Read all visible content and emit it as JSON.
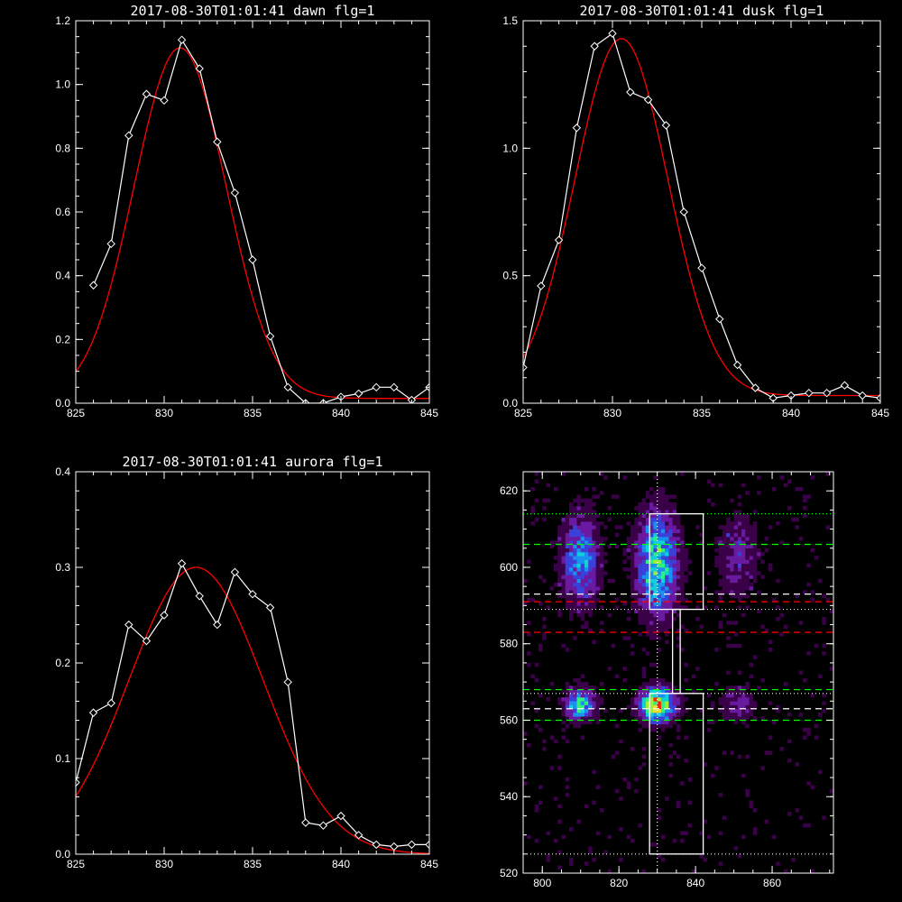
{
  "chart_data": [
    {
      "type": "line",
      "title": "2017-08-30T01:01:41 dawn flg=1",
      "xlim": [
        825,
        845
      ],
      "ylim": [
        0,
        1.2
      ],
      "xticks": [
        825,
        830,
        835,
        840,
        845
      ],
      "yticks": [
        0.0,
        0.2,
        0.4,
        0.6,
        0.8,
        1.0,
        1.2
      ],
      "ytick_labels": [
        "0.0",
        "0.2",
        "0.4",
        "0.6",
        "0.8",
        "1.0",
        "1.2"
      ],
      "series": [
        {
          "kind": "data",
          "color": "#ffffff",
          "x": [
            826,
            827,
            828,
            829,
            830,
            831,
            832,
            833,
            834,
            835,
            836,
            837,
            838,
            839,
            840,
            841,
            842,
            843,
            844,
            845
          ],
          "y": [
            0.37,
            0.5,
            0.84,
            0.97,
            0.95,
            1.14,
            1.05,
            0.82,
            0.66,
            0.45,
            0.21,
            0.05,
            0.0,
            0.0,
            0.02,
            0.03,
            0.05,
            0.05,
            0.01,
            0.05
          ]
        },
        {
          "kind": "fit",
          "color": "#ff0000",
          "model": "gaussian",
          "amp": 1.1,
          "center": 830.9,
          "sigma": 2.6,
          "offset": 0.015,
          "x": [
            825,
            845
          ]
        }
      ]
    },
    {
      "type": "line",
      "title": "2017-08-30T01:01:41 dusk flg=1",
      "xlim": [
        825,
        845
      ],
      "ylim": [
        0,
        1.5
      ],
      "xticks": [
        825,
        830,
        835,
        840,
        845
      ],
      "yticks": [
        0.0,
        0.5,
        1.0,
        1.5
      ],
      "ytick_labels": [
        "0.0",
        "0.5",
        "1.0",
        "1.5"
      ],
      "series": [
        {
          "kind": "data",
          "color": "#ffffff",
          "x": [
            825,
            826,
            827,
            828,
            829,
            830,
            831,
            832,
            833,
            834,
            835,
            836,
            837,
            838,
            839,
            840,
            841,
            842,
            843,
            844,
            845
          ],
          "y": [
            0.14,
            0.46,
            0.64,
            1.08,
            1.4,
            1.45,
            1.22,
            1.19,
            1.09,
            0.75,
            0.53,
            0.33,
            0.15,
            0.06,
            0.02,
            0.03,
            0.04,
            0.04,
            0.07,
            0.03,
            0.02
          ]
        },
        {
          "kind": "fit",
          "color": "#ff0000",
          "model": "gaussian",
          "amp": 1.4,
          "center": 830.5,
          "sigma": 2.6,
          "offset": 0.03,
          "x": [
            825,
            845
          ]
        }
      ]
    },
    {
      "type": "line",
      "title": "2017-08-30T01:01:41 aurora flg=1",
      "xlim": [
        825,
        845
      ],
      "ylim": [
        0,
        0.4
      ],
      "xticks": [
        825,
        830,
        835,
        840,
        845
      ],
      "yticks": [
        0.0,
        0.1,
        0.2,
        0.3,
        0.4
      ],
      "ytick_labels": [
        "0.0",
        "0.1",
        "0.2",
        "0.3",
        "0.4"
      ],
      "series": [
        {
          "kind": "data",
          "color": "#ffffff",
          "x": [
            825,
            826,
            827,
            828,
            829,
            830,
            831,
            832,
            833,
            834,
            835,
            836,
            837,
            838,
            839,
            840,
            841,
            842,
            843,
            844,
            845
          ],
          "y": [
            0.075,
            0.148,
            0.158,
            0.24,
            0.223,
            0.25,
            0.304,
            0.27,
            0.24,
            0.295,
            0.272,
            0.258,
            0.18,
            0.033,
            0.03,
            0.04,
            0.02,
            0.01,
            0.008,
            0.01,
            0.01
          ]
        },
        {
          "kind": "fit",
          "color": "#ff0000",
          "model": "gaussian",
          "amp": 0.3,
          "center": 831.8,
          "sigma": 3.8,
          "offset": 0.0,
          "x": [
            825,
            845
          ]
        }
      ]
    },
    {
      "type": "heatmap",
      "title": "",
      "xlim": [
        795,
        876
      ],
      "ylim": [
        520,
        625
      ],
      "xticks": [
        800,
        820,
        840,
        860
      ],
      "yticks": [
        520,
        540,
        560,
        580,
        600,
        620
      ],
      "colormap": [
        "#000000",
        "#3a0048",
        "#6a1aa0",
        "#3a40d8",
        "#1a90f0",
        "#10d0d8",
        "#30f080",
        "#a0f030",
        "#f0e020",
        "#ff2000"
      ],
      "blobs": [
        {
          "x": 810,
          "y": 602,
          "sx": 3.2,
          "sy": 8,
          "amp": 0.45
        },
        {
          "x": 830,
          "y": 601,
          "sx": 3.5,
          "sy": 9,
          "amp": 0.62
        },
        {
          "x": 851,
          "y": 603,
          "sx": 3.5,
          "sy": 7,
          "amp": 0.22
        },
        {
          "x": 810,
          "y": 564,
          "sx": 2.6,
          "sy": 2.6,
          "amp": 0.6
        },
        {
          "x": 830,
          "y": 564,
          "sx": 3.0,
          "sy": 2.8,
          "amp": 0.95
        },
        {
          "x": 851,
          "y": 564,
          "sx": 3.0,
          "sy": 3.0,
          "amp": 0.22
        }
      ],
      "boxes": [
        {
          "x": [
            828,
            842
          ],
          "y": [
            589,
            614
          ]
        },
        {
          "x": [
            828,
            842
          ],
          "y": [
            525,
            567
          ]
        },
        {
          "x": [
            834,
            836
          ],
          "y": [
            567,
            589
          ]
        }
      ],
      "hlines": [
        {
          "y": 614,
          "color": "#00ff00",
          "style": "dotted"
        },
        {
          "y": 606,
          "color": "#00ff00",
          "style": "dashed"
        },
        {
          "y": 593,
          "color": "#ffffff",
          "style": "dashed"
        },
        {
          "y": 591,
          "color": "#ff0000",
          "style": "dashed"
        },
        {
          "y": 589,
          "color": "#ffffff",
          "style": "dotted"
        },
        {
          "y": 583,
          "color": "#ff0000",
          "style": "dashed"
        },
        {
          "y": 568,
          "color": "#00ff00",
          "style": "dashed"
        },
        {
          "y": 567,
          "color": "#ffffff",
          "style": "dotted"
        },
        {
          "y": 563,
          "color": "#ffffff",
          "style": "dashed"
        },
        {
          "y": 560,
          "color": "#00ff00",
          "style": "dashed"
        },
        {
          "y": 525,
          "color": "#ffffff",
          "style": "dotted"
        }
      ],
      "vlines": [
        {
          "x": 830,
          "color": "#ffffff",
          "style": "dotted"
        }
      ]
    }
  ]
}
